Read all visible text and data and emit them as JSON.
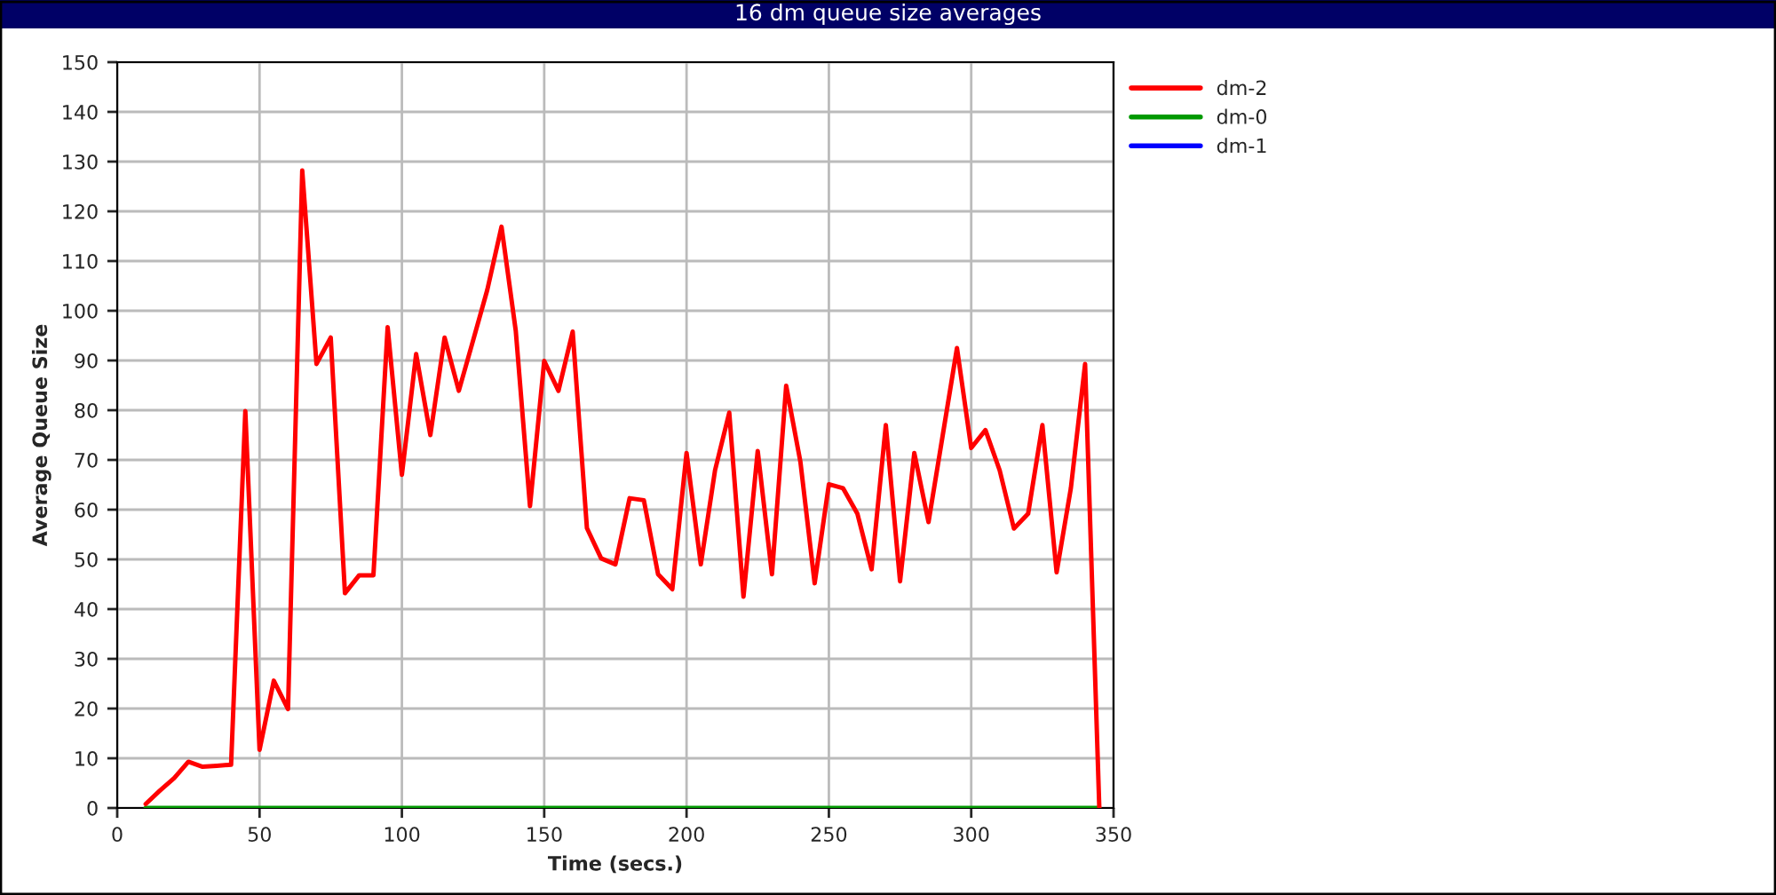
{
  "chart_data": {
    "type": "line",
    "title": "16 dm queue size averages",
    "xlabel": "Time (secs.)",
    "ylabel": "Average Queue Size",
    "x": [
      10,
      15,
      20,
      25,
      30,
      35,
      40,
      45,
      50,
      55,
      60,
      65,
      70,
      75,
      80,
      85,
      90,
      95,
      100,
      105,
      110,
      115,
      120,
      125,
      130,
      135,
      140,
      145,
      150,
      155,
      160,
      165,
      170,
      175,
      180,
      185,
      190,
      195,
      200,
      205,
      210,
      215,
      220,
      225,
      230,
      235,
      240,
      245,
      250,
      255,
      260,
      265,
      270,
      275,
      280,
      285,
      290,
      295,
      300,
      305,
      310,
      315,
      320,
      325,
      330,
      335,
      340,
      345
    ],
    "series": [
      {
        "name": "dm-2",
        "color": "#ff0000",
        "values": [
          0.8,
          3.5,
          6,
          9.3,
          8.3,
          8.5,
          8.7,
          79.8,
          11.7,
          25.6,
          19.9,
          128.2,
          89.3,
          94.6,
          43.2,
          46.8,
          46.8,
          96.7,
          67,
          91.3,
          75,
          94.6,
          83.9,
          94,
          104.2,
          116.9,
          96,
          60.7,
          89.9,
          83.9,
          95.8,
          56.3,
          50.2,
          49,
          62.3,
          61.9,
          47,
          44,
          71.4,
          49,
          67.9,
          79.5,
          42.5,
          71.8,
          47,
          84.9,
          69.6,
          45.2,
          65.1,
          64.3,
          59.2,
          48,
          77,
          45.6,
          71.4,
          57.5,
          75,
          92.5,
          72.4,
          76,
          67.9,
          56.2,
          59.2,
          77,
          47.4,
          64.3,
          89.3,
          0
        ]
      },
      {
        "name": "dm-0",
        "color": "#009900",
        "values": [
          0,
          0,
          0,
          0,
          0,
          0,
          0,
          0,
          0,
          0,
          0,
          0,
          0,
          0,
          0,
          0,
          0,
          0,
          0,
          0,
          0,
          0,
          0,
          0,
          0,
          0,
          0,
          0,
          0,
          0,
          0,
          0,
          0,
          0,
          0,
          0,
          0,
          0,
          0,
          0,
          0,
          0,
          0,
          0,
          0,
          0,
          0,
          0,
          0,
          0,
          0,
          0,
          0,
          0,
          0,
          0,
          0,
          0,
          0,
          0,
          0,
          0,
          0,
          0,
          0,
          0,
          0,
          0
        ]
      },
      {
        "name": "dm-1",
        "color": "#0000ff",
        "values": [
          null,
          null,
          null,
          null,
          null,
          null,
          null,
          null,
          null,
          null,
          null,
          null,
          null,
          null,
          null,
          null,
          null,
          null,
          null,
          null,
          null,
          null,
          null,
          null,
          null,
          null,
          null,
          null,
          null,
          null,
          null,
          null,
          null,
          null,
          null,
          null,
          null,
          null,
          null,
          null,
          null,
          null,
          null,
          null,
          null,
          null,
          null,
          null,
          null,
          null,
          null,
          null,
          null,
          null,
          null,
          null,
          null,
          null,
          null,
          null,
          null,
          null,
          null,
          null,
          null,
          null,
          null,
          null
        ]
      }
    ],
    "xlim": [
      0,
      350
    ],
    "xticks": [
      0,
      50,
      100,
      150,
      200,
      250,
      300,
      350
    ],
    "ylim": [
      0,
      150
    ],
    "yticks": [
      0,
      10,
      20,
      30,
      40,
      50,
      60,
      70,
      80,
      90,
      100,
      110,
      120,
      130,
      140,
      150
    ],
    "grid": true,
    "legend": "top right",
    "marker": "none",
    "line_style": "solid"
  }
}
